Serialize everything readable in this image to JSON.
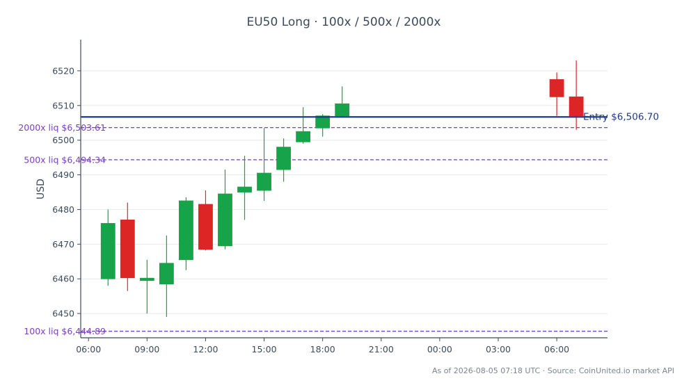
{
  "chart_data": {
    "type": "candlestick",
    "title": "EU50 Long · 100x / 500x / 2000x",
    "xlabel": "",
    "ylabel": "USD",
    "ylim": [
      6443,
      6529
    ],
    "xlim_hours": [
      5.6,
      32.6
    ],
    "y_ticks": [
      6450,
      6460,
      6470,
      6480,
      6490,
      6500,
      6510,
      6520
    ],
    "x_ticks": [
      {
        "hour": 6,
        "label": "06:00"
      },
      {
        "hour": 9,
        "label": "09:00"
      },
      {
        "hour": 12,
        "label": "12:00"
      },
      {
        "hour": 15,
        "label": "15:00"
      },
      {
        "hour": 18,
        "label": "18:00"
      },
      {
        "hour": 21,
        "label": "21:00"
      },
      {
        "hour": 24,
        "label": "00:00"
      },
      {
        "hour": 27,
        "label": "03:00"
      },
      {
        "hour": 30,
        "label": "06:00"
      }
    ],
    "grid": true,
    "colors": {
      "up": "#16a34a",
      "down": "#dc2626",
      "entry": "#1e3a8a",
      "liquidation": "#7b3fc4",
      "grid": "#e6e8ea",
      "axis": "#3b4a5a"
    },
    "candles": [
      {
        "t": 7,
        "open": 6460.0,
        "high": 6480.0,
        "low": 6458.0,
        "close": 6476.0
      },
      {
        "t": 8,
        "open": 6477.0,
        "high": 6482.0,
        "low": 6456.5,
        "close": 6460.3
      },
      {
        "t": 9,
        "open": 6459.5,
        "high": 6465.5,
        "low": 6450.0,
        "close": 6460.2
      },
      {
        "t": 10,
        "open": 6458.5,
        "high": 6472.5,
        "low": 6449.0,
        "close": 6464.5
      },
      {
        "t": 11,
        "open": 6465.5,
        "high": 6483.5,
        "low": 6462.5,
        "close": 6482.5
      },
      {
        "t": 12,
        "open": 6481.5,
        "high": 6485.5,
        "low": 6468.2,
        "close": 6468.5
      },
      {
        "t": 13,
        "open": 6469.5,
        "high": 6491.5,
        "low": 6468.5,
        "close": 6484.5
      },
      {
        "t": 14,
        "open": 6485.0,
        "high": 6495.5,
        "low": 6477.0,
        "close": 6486.5
      },
      {
        "t": 15,
        "open": 6485.5,
        "high": 6503.5,
        "low": 6482.5,
        "close": 6490.5
      },
      {
        "t": 16,
        "open": 6491.5,
        "high": 6500.5,
        "low": 6488.0,
        "close": 6498.0
      },
      {
        "t": 17,
        "open": 6499.5,
        "high": 6509.5,
        "low": 6499.0,
        "close": 6502.5
      },
      {
        "t": 18,
        "open": 6503.5,
        "high": 6507.5,
        "low": 6501.0,
        "close": 6507.0
      },
      {
        "t": 19,
        "open": 6507.0,
        "high": 6515.5,
        "low": 6506.5,
        "close": 6510.5
      },
      {
        "t": 30,
        "open": 6517.5,
        "high": 6519.5,
        "low": 6507.0,
        "close": 6512.5
      },
      {
        "t": 31,
        "open": 6512.5,
        "high": 6523.0,
        "low": 6503.0,
        "close": 6507.0
      }
    ],
    "entry": {
      "price": 6506.7,
      "label": "Entry $6,506.70"
    },
    "liquidations": [
      {
        "leverage": "2000x",
        "price": 6503.61,
        "label": "2000x liq $6,503.61"
      },
      {
        "leverage": "500x",
        "price": 6494.34,
        "label": "500x liq $6,494.34"
      },
      {
        "leverage": "100x",
        "price": 6444.89,
        "label": "100x liq $6,444.89"
      }
    ],
    "source_note": "As of 2026-08-05 07:18 UTC · Source: CoinUnited.io market API"
  }
}
